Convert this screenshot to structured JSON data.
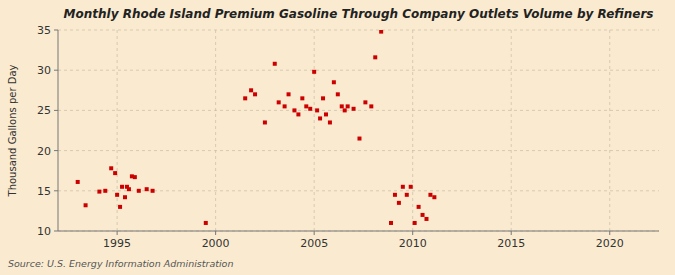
{
  "chart_data": {
    "type": "scatter",
    "title": "Monthly Rhode Island Premium Gasoline Through Company Outlets Volume by Refiners",
    "y_label": "Thousand Gallons per Day",
    "annotations": [
      "Source: U.S. Energy Information Administration"
    ],
    "color": "#cc0000",
    "marker": "square",
    "grid": true,
    "xlim": [
      1992.0,
      2022.5
    ],
    "ylim": [
      10,
      35
    ],
    "xticks": [
      1995,
      2000,
      2005,
      2010,
      2015,
      2020
    ],
    "yticks": [
      10,
      15,
      20,
      25,
      30,
      35
    ],
    "x": [
      1993.0,
      1993.4,
      1994.1,
      1994.4,
      1994.7,
      1994.9,
      1995.0,
      1995.15,
      1995.25,
      1995.4,
      1995.5,
      1995.6,
      1995.75,
      1995.9,
      1996.1,
      1996.5,
      1996.8,
      1999.5,
      2001.5,
      2001.8,
      2002.0,
      2002.5,
      2003.0,
      2003.2,
      2003.5,
      2003.7,
      2004.0,
      2004.2,
      2004.4,
      2004.6,
      2004.8,
      2005.0,
      2005.15,
      2005.3,
      2005.45,
      2005.6,
      2005.8,
      2006.0,
      2006.2,
      2006.4,
      2006.55,
      2006.7,
      2007.0,
      2007.3,
      2007.6,
      2007.9,
      2008.1,
      2008.4,
      2008.9,
      2009.1,
      2009.3,
      2009.5,
      2009.7,
      2009.9,
      2010.1,
      2010.3,
      2010.5,
      2010.7,
      2010.9,
      2011.1
    ],
    "values": [
      16.1,
      13.2,
      14.9,
      15.0,
      17.8,
      17.2,
      14.5,
      13.0,
      15.5,
      14.2,
      15.5,
      15.2,
      16.8,
      16.7,
      15.0,
      15.2,
      15.0,
      11.0,
      26.5,
      27.5,
      27.0,
      23.5,
      30.8,
      26.0,
      25.5,
      27.0,
      25.0,
      24.5,
      26.5,
      25.5,
      25.2,
      29.8,
      25.0,
      24.0,
      26.5,
      24.5,
      23.5,
      28.5,
      27.0,
      25.5,
      25.0,
      25.5,
      25.2,
      21.5,
      26.0,
      25.5,
      31.6,
      34.8,
      11.0,
      14.5,
      13.5,
      15.5,
      14.5,
      15.5,
      11.0,
      13.0,
      12.0,
      11.5,
      14.5,
      14.2
    ]
  }
}
